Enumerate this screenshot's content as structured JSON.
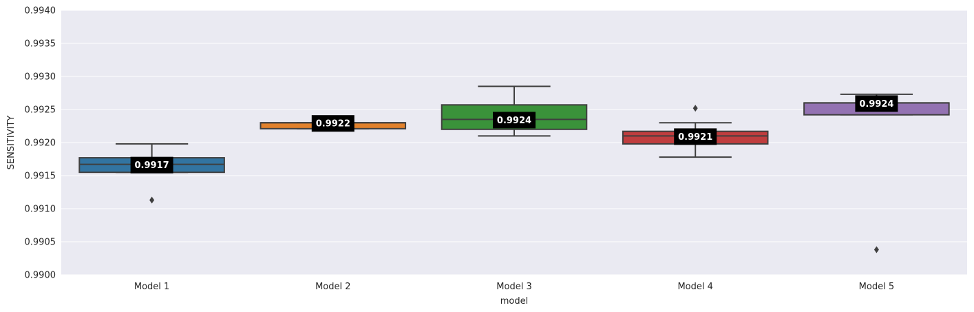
{
  "chart_data": {
    "type": "box",
    "xlabel": "model",
    "ylabel": "SENSITIVITY",
    "ylim": [
      0.99,
      0.994
    ],
    "yticks": [
      "0.9900",
      "0.9905",
      "0.9910",
      "0.9915",
      "0.9920",
      "0.9925",
      "0.9930",
      "0.9935",
      "0.9940"
    ],
    "grid": true,
    "background": "#eaeaf2",
    "categories": [
      "Model 1",
      "Model 2",
      "Model 3",
      "Model 4",
      "Model 5"
    ],
    "boxes": [
      {
        "name": "Model 1",
        "color": "#3274a1",
        "whisker_low": 0.99155,
        "q1": 0.99155,
        "median": 0.99167,
        "q3": 0.99177,
        "whisker_high": 0.99198,
        "outliers": [
          0.99113
        ],
        "label": "0.9917"
      },
      {
        "name": "Model 2",
        "color": "#e1812c",
        "whisker_low": 0.99221,
        "q1": 0.99221,
        "median": 0.9923,
        "q3": 0.9923,
        "whisker_high": 0.9923,
        "outliers": [],
        "label": "0.9922"
      },
      {
        "name": "Model 3",
        "color": "#3a923a",
        "whisker_low": 0.9921,
        "q1": 0.9922,
        "median": 0.99235,
        "q3": 0.99257,
        "whisker_high": 0.99285,
        "outliers": [],
        "label": "0.9924"
      },
      {
        "name": "Model 4",
        "color": "#c03d3e",
        "whisker_low": 0.99178,
        "q1": 0.99198,
        "median": 0.9921,
        "q3": 0.99217,
        "whisker_high": 0.9923,
        "outliers": [
          0.99252
        ],
        "label": "0.9921"
      },
      {
        "name": "Model 5",
        "color": "#9372b2",
        "whisker_low": 0.99242,
        "q1": 0.99242,
        "median": 0.9926,
        "q3": 0.9926,
        "whisker_high": 0.99273,
        "outliers": [
          0.99038
        ],
        "label": "0.9924"
      }
    ]
  }
}
